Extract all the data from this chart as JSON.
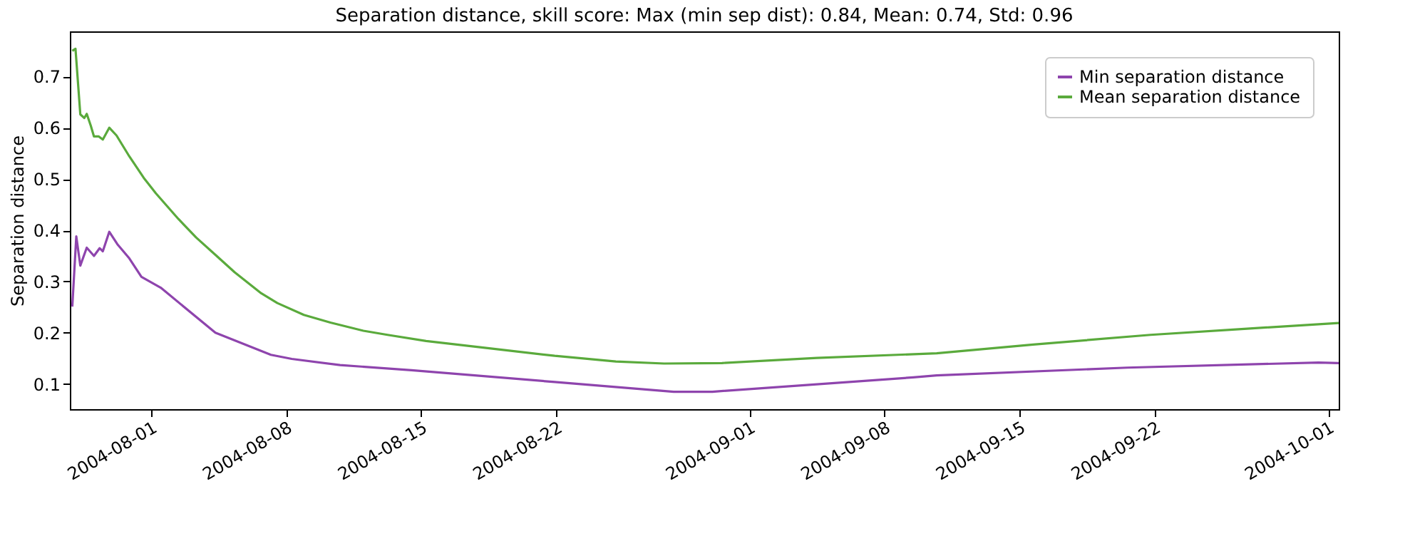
{
  "chart_data": {
    "type": "line",
    "title": "Separation distance, skill score: Max (min sep dist): 0.84, Mean: 0.74, Std: 0.96",
    "ylabel": "Separation distance",
    "xlim": [
      "2004-07-27T19:00",
      "2004-10-01T13:00"
    ],
    "xticks": [
      {
        "value": "2004-08-01",
        "label": "2004-08-01"
      },
      {
        "value": "2004-08-08",
        "label": "2004-08-08"
      },
      {
        "value": "2004-08-15",
        "label": "2004-08-15"
      },
      {
        "value": "2004-08-22",
        "label": "2004-08-22"
      },
      {
        "value": "2004-09-01",
        "label": "2004-09-01"
      },
      {
        "value": "2004-09-08",
        "label": "2004-09-08"
      },
      {
        "value": "2004-09-15",
        "label": "2004-09-15"
      },
      {
        "value": "2004-09-22",
        "label": "2004-09-22"
      },
      {
        "value": "2004-10-01",
        "label": "2004-10-01"
      }
    ],
    "ylim": [
      0.051,
      0.788
    ],
    "yticks": [
      0.1,
      0.2,
      0.3,
      0.4,
      0.5,
      0.6,
      0.7
    ],
    "grid": false,
    "legend": "top right",
    "line_style": "solid",
    "series": [
      {
        "name": "Min separation distance",
        "color": "#8e44ad",
        "x": [
          "2004-07-27T22:00",
          "2004-07-28T03:00",
          "2004-07-28T08:00",
          "2004-07-28T16:00",
          "2004-07-29T01:00",
          "2004-07-29T08:00",
          "2004-07-29T12:00",
          "2004-07-29T20:00",
          "2004-07-30T06:00",
          "2004-07-30T21:00",
          "2004-07-31T12:00",
          "2004-08-01T12:00",
          "2004-08-04T08:00",
          "2004-08-07T05:00",
          "2004-08-08T07:00",
          "2004-08-10T19:00",
          "2004-08-14T12:00",
          "2004-08-21T22:00",
          "2004-08-28T02:00",
          "2004-08-30T02:00",
          "2004-09-09T12:00",
          "2004-09-10T17:00",
          "2004-09-20T14:00",
          "2004-09-30T12:00",
          "2004-10-01T13:00"
        ],
        "values": [
          0.251,
          0.388,
          0.331,
          0.366,
          0.35,
          0.365,
          0.359,
          0.397,
          0.373,
          0.345,
          0.309,
          0.288,
          0.2,
          0.157,
          0.149,
          0.137,
          0.127,
          0.104,
          0.085,
          0.085,
          0.113,
          0.117,
          0.132,
          0.142,
          0.141
        ]
      },
      {
        "name": "Mean separation distance",
        "color": "#5aaa3c",
        "x": [
          "2004-07-27T22:00",
          "2004-07-28T02:00",
          "2004-07-28T08:00",
          "2004-07-28T13:00",
          "2004-07-28T16:00",
          "2004-07-28T21:00",
          "2004-07-29T01:00",
          "2004-07-29T07:00",
          "2004-07-29T12:00",
          "2004-07-29T20:00",
          "2004-07-30T05:00",
          "2004-07-30T21:00",
          "2004-07-31T15:00",
          "2004-08-01T06:00",
          "2004-08-02T10:00",
          "2004-08-03T08:00",
          "2004-08-04T08:00",
          "2004-08-05T08:00",
          "2004-08-06T17:00",
          "2004-08-07T13:00",
          "2004-08-08T22:00",
          "2004-08-10T07:00",
          "2004-08-12T00:00",
          "2004-08-13T06:00",
          "2004-08-15T06:00",
          "2004-08-18T05:00",
          "2004-08-21T22:00",
          "2004-08-25T02:00",
          "2004-08-27T14:00",
          "2004-08-30T14:00",
          "2004-09-04T12:00",
          "2004-09-10T17:00",
          "2004-09-15T17:00",
          "2004-09-21T19:00",
          "2004-09-26T19:00",
          "2004-10-01T13:00"
        ],
        "values": [
          0.75,
          0.754,
          0.626,
          0.619,
          0.627,
          0.604,
          0.583,
          0.583,
          0.577,
          0.6,
          0.585,
          0.544,
          0.502,
          0.472,
          0.422,
          0.386,
          0.352,
          0.318,
          0.277,
          0.258,
          0.235,
          0.22,
          0.204,
          0.196,
          0.184,
          0.171,
          0.155,
          0.144,
          0.14,
          0.141,
          0.151,
          0.16,
          0.177,
          0.196,
          0.208,
          0.219
        ]
      }
    ]
  }
}
